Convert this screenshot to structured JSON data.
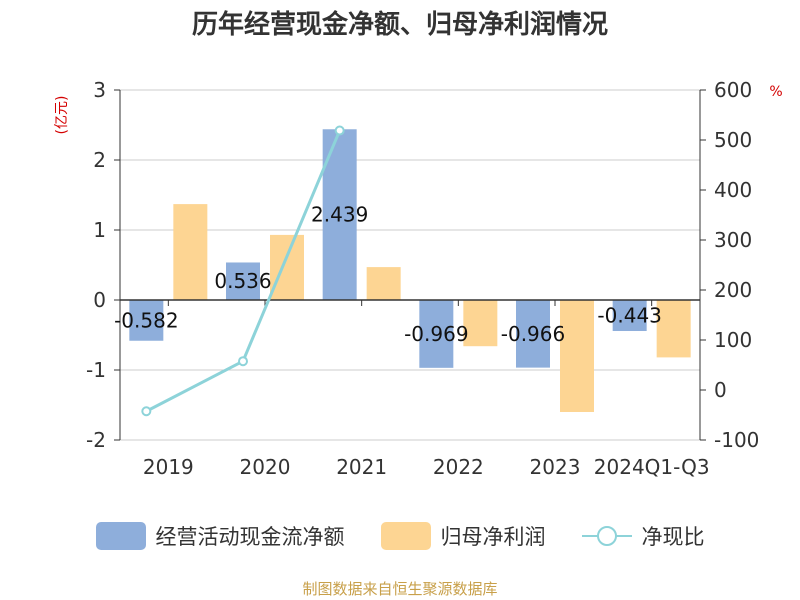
{
  "title": "历年经营现金净额、归母净利润情况",
  "source": "制图数据来自恒生聚源数据库",
  "left_axis_unit": "(亿元)",
  "right_axis_unit": "%",
  "colors": {
    "cash": "#8eaedb",
    "profit": "#fdd593",
    "ratio": "#8dd3d9",
    "unit": "#d40000"
  },
  "legend": [
    {
      "label": "经营活动现金流净额",
      "kind": "bar",
      "color": "#8eaedb"
    },
    {
      "label": "归母净利润",
      "kind": "bar",
      "color": "#fdd593"
    },
    {
      "label": "净现比",
      "kind": "line",
      "color": "#8dd3d9"
    }
  ],
  "chart_data": {
    "type": "bar",
    "categories": [
      "2019",
      "2020",
      "2021",
      "2022",
      "2023",
      "2024Q1-Q3"
    ],
    "series": [
      {
        "name": "经营活动现金流净额",
        "type": "bar",
        "axis": "left",
        "values": [
          -0.582,
          0.536,
          2.439,
          -0.969,
          -0.966,
          -0.443
        ],
        "labels": [
          "-0.582",
          "0.536",
          "2.439",
          "-0.969",
          "-0.966",
          "-0.443"
        ]
      },
      {
        "name": "归母净利润",
        "type": "bar",
        "axis": "left",
        "values": [
          1.37,
          0.93,
          0.47,
          -0.66,
          -1.6,
          -0.82
        ]
      },
      {
        "name": "净现比",
        "type": "line",
        "axis": "right",
        "values": [
          -42.5,
          57.6,
          518.9,
          null,
          null,
          null
        ]
      }
    ],
    "left_axis": {
      "min": -2,
      "max": 3,
      "ticks": [
        -2,
        -1,
        0,
        1,
        2,
        3
      ]
    },
    "right_axis": {
      "min": -100,
      "max": 600,
      "ticks": [
        -100,
        0,
        100,
        200,
        300,
        400,
        500,
        600
      ]
    },
    "grid": true,
    "legend_position": "bottom"
  }
}
